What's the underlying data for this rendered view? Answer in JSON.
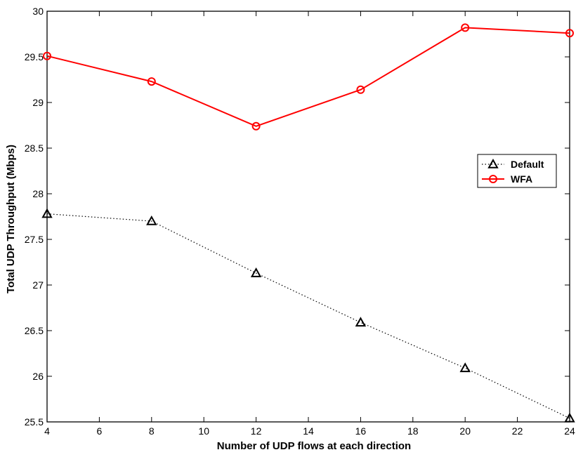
{
  "chart_data": {
    "type": "line",
    "title": "",
    "xlabel": "Number of UDP flows at each direction",
    "ylabel": "Total UDP Throughput (Mbps)",
    "x": [
      4,
      8,
      12,
      16,
      20,
      24
    ],
    "xlim": [
      4,
      24
    ],
    "ylim": [
      25.5,
      30
    ],
    "xticks": [
      4,
      6,
      8,
      10,
      12,
      14,
      16,
      18,
      20,
      22,
      24
    ],
    "yticks": [
      25.5,
      26,
      26.5,
      27,
      27.5,
      28,
      28.5,
      29,
      29.5,
      30
    ],
    "grid": false,
    "legend_position": "right",
    "series": [
      {
        "name": "Default",
        "values": [
          27.78,
          27.7,
          27.13,
          26.59,
          26.09,
          25.54
        ],
        "color": "#000000",
        "line_style": "dotted",
        "marker": "triangle"
      },
      {
        "name": "WFA",
        "values": [
          29.51,
          29.23,
          28.74,
          29.14,
          29.82,
          29.76
        ],
        "color": "#ff0000",
        "line_style": "solid",
        "marker": "circle"
      }
    ]
  }
}
